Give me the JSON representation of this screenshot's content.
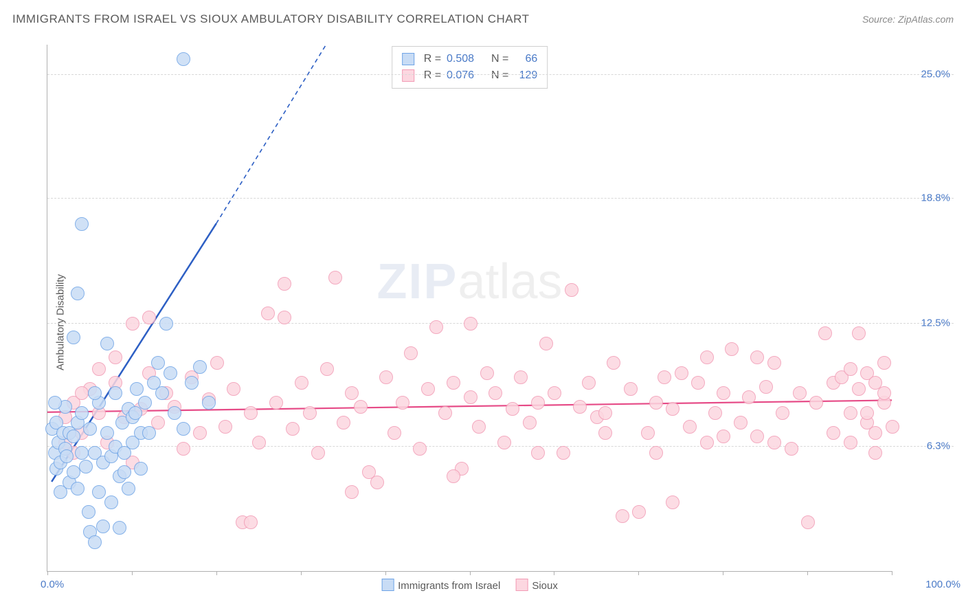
{
  "title": "IMMIGRANTS FROM ISRAEL VS SIOUX AMBULATORY DISABILITY CORRELATION CHART",
  "source_label": "Source: ",
  "source_name": "ZipAtlas.com",
  "ylabel": "Ambulatory Disability",
  "watermark_bold": "ZIP",
  "watermark_rest": "atlas",
  "xaxis": {
    "min_label": "0.0%",
    "max_label": "100.0%",
    "tick_positions_pct": [
      0,
      10,
      20,
      30,
      40,
      50,
      60,
      70,
      80,
      90,
      100
    ]
  },
  "yaxis": {
    "min": 0.0,
    "max": 26.5,
    "gridlines": [
      {
        "value": 6.3,
        "label": "6.3%"
      },
      {
        "value": 12.5,
        "label": "12.5%"
      },
      {
        "value": 18.8,
        "label": "18.8%"
      },
      {
        "value": 25.0,
        "label": "25.0%"
      }
    ]
  },
  "series": [
    {
      "name": "Immigrants from Israel",
      "fill": "#c8dcf5",
      "stroke": "#6fa4e6",
      "line_color": "#2d5fc4",
      "R": "0.508",
      "N": "66",
      "trend": {
        "x1": 0.5,
        "y1": 4.5,
        "solid_end_x": 20,
        "solid_end_y": 17.5,
        "dash_end_x": 33,
        "dash_end_y": 26.5
      },
      "points": [
        [
          0.5,
          7.2
        ],
        [
          0.8,
          6.0
        ],
        [
          1.0,
          7.5
        ],
        [
          1.2,
          6.5
        ],
        [
          1.0,
          5.2
        ],
        [
          1.5,
          5.5
        ],
        [
          1.5,
          4.0
        ],
        [
          1.8,
          7.0
        ],
        [
          2.0,
          6.2
        ],
        [
          2.0,
          8.3
        ],
        [
          0.8,
          8.5
        ],
        [
          2.2,
          5.8
        ],
        [
          2.5,
          7.0
        ],
        [
          2.5,
          4.5
        ],
        [
          3.0,
          6.8
        ],
        [
          3.0,
          5.0
        ],
        [
          3.5,
          7.5
        ],
        [
          3.5,
          4.2
        ],
        [
          4.0,
          6.0
        ],
        [
          4.0,
          8.0
        ],
        [
          4.5,
          5.3
        ],
        [
          4.8,
          3.0
        ],
        [
          5.0,
          7.2
        ],
        [
          5.0,
          2.0
        ],
        [
          5.5,
          6.0
        ],
        [
          5.5,
          1.5
        ],
        [
          6.0,
          8.5
        ],
        [
          6.0,
          4.0
        ],
        [
          6.5,
          5.5
        ],
        [
          6.5,
          2.3
        ],
        [
          7.0,
          7.0
        ],
        [
          7.0,
          11.5
        ],
        [
          7.5,
          5.8
        ],
        [
          7.5,
          3.5
        ],
        [
          8.0,
          9.0
        ],
        [
          8.0,
          6.3
        ],
        [
          8.5,
          4.8
        ],
        [
          8.5,
          2.2
        ],
        [
          8.8,
          7.5
        ],
        [
          9.0,
          6.0
        ],
        [
          9.0,
          5.0
        ],
        [
          9.5,
          8.2
        ],
        [
          9.5,
          4.2
        ],
        [
          10.0,
          7.8
        ],
        [
          10.0,
          6.5
        ],
        [
          10.3,
          8.0
        ],
        [
          10.5,
          9.2
        ],
        [
          11.0,
          7.0
        ],
        [
          11.0,
          5.2
        ],
        [
          11.5,
          8.5
        ],
        [
          12.0,
          7.0
        ],
        [
          12.5,
          9.5
        ],
        [
          13.0,
          10.5
        ],
        [
          3.5,
          14.0
        ],
        [
          4.0,
          17.5
        ],
        [
          3.0,
          11.8
        ],
        [
          13.5,
          9.0
        ],
        [
          14.0,
          12.5
        ],
        [
          14.5,
          10.0
        ],
        [
          15.0,
          8.0
        ],
        [
          16.0,
          7.2
        ],
        [
          16.0,
          25.8
        ],
        [
          17.0,
          9.5
        ],
        [
          18.0,
          10.3
        ],
        [
          19.0,
          8.5
        ],
        [
          5.5,
          9.0
        ]
      ]
    },
    {
      "name": "Sioux",
      "fill": "#fcd7e0",
      "stroke": "#f29bb5",
      "line_color": "#e64b87",
      "R": "0.076",
      "N": "129",
      "trend": {
        "x1": 0,
        "y1": 8.0,
        "solid_end_x": 100,
        "solid_end_y": 8.6
      },
      "points": [
        [
          2,
          7.8
        ],
        [
          3,
          8.5
        ],
        [
          4,
          7.0
        ],
        [
          5,
          9.2
        ],
        [
          6,
          8.0
        ],
        [
          7,
          6.5
        ],
        [
          8,
          9.5
        ],
        [
          9,
          7.8
        ],
        [
          10,
          5.5
        ],
        [
          11,
          8.2
        ],
        [
          12,
          10.0
        ],
        [
          13,
          7.5
        ],
        [
          14,
          9.0
        ],
        [
          15,
          8.3
        ],
        [
          16,
          6.2
        ],
        [
          17,
          9.8
        ],
        [
          18,
          7.0
        ],
        [
          19,
          8.7
        ],
        [
          20,
          10.5
        ],
        [
          21,
          7.3
        ],
        [
          22,
          9.2
        ],
        [
          23,
          2.5
        ],
        [
          24,
          8.0
        ],
        [
          25,
          6.5
        ],
        [
          26,
          13.0
        ],
        [
          27,
          8.5
        ],
        [
          28,
          14.5
        ],
        [
          29,
          7.2
        ],
        [
          30,
          9.5
        ],
        [
          31,
          8.0
        ],
        [
          32,
          6.0
        ],
        [
          33,
          10.2
        ],
        [
          34,
          14.8
        ],
        [
          35,
          7.5
        ],
        [
          36,
          9.0
        ],
        [
          37,
          8.3
        ],
        [
          38,
          5.0
        ],
        [
          39,
          4.5
        ],
        [
          40,
          9.8
        ],
        [
          41,
          7.0
        ],
        [
          42,
          8.5
        ],
        [
          43,
          11.0
        ],
        [
          44,
          6.2
        ],
        [
          45,
          9.2
        ],
        [
          46,
          12.3
        ],
        [
          47,
          8.0
        ],
        [
          48,
          9.5
        ],
        [
          49,
          5.2
        ],
        [
          50,
          8.8
        ],
        [
          51,
          7.3
        ],
        [
          52,
          10.0
        ],
        [
          53,
          9.0
        ],
        [
          54,
          6.5
        ],
        [
          55,
          8.2
        ],
        [
          56,
          9.8
        ],
        [
          57,
          7.5
        ],
        [
          58,
          8.5
        ],
        [
          59,
          11.5
        ],
        [
          60,
          9.0
        ],
        [
          61,
          6.0
        ],
        [
          62,
          14.2
        ],
        [
          63,
          8.3
        ],
        [
          64,
          9.5
        ],
        [
          65,
          7.8
        ],
        [
          66,
          8.0
        ],
        [
          67,
          10.5
        ],
        [
          68,
          2.8
        ],
        [
          69,
          9.2
        ],
        [
          70,
          3.0
        ],
        [
          71,
          7.0
        ],
        [
          72,
          8.5
        ],
        [
          73,
          9.8
        ],
        [
          74,
          8.2
        ],
        [
          75,
          10.0
        ],
        [
          76,
          7.3
        ],
        [
          77,
          9.5
        ],
        [
          78,
          6.5
        ],
        [
          78,
          10.8
        ],
        [
          79,
          8.0
        ],
        [
          80,
          9.0
        ],
        [
          81,
          11.2
        ],
        [
          82,
          7.5
        ],
        [
          83,
          8.8
        ],
        [
          84,
          6.8
        ],
        [
          84,
          10.8
        ],
        [
          85,
          9.3
        ],
        [
          86,
          10.5
        ],
        [
          87,
          8.0
        ],
        [
          88,
          6.2
        ],
        [
          89,
          9.0
        ],
        [
          90,
          2.5
        ],
        [
          91,
          8.5
        ],
        [
          92,
          12.0
        ],
        [
          93,
          7.0
        ],
        [
          93,
          9.5
        ],
        [
          94,
          9.8
        ],
        [
          95,
          6.5
        ],
        [
          95,
          10.2
        ],
        [
          95,
          8.0
        ],
        [
          96,
          9.2
        ],
        [
          96,
          12.0
        ],
        [
          97,
          7.5
        ],
        [
          97,
          8.0
        ],
        [
          97,
          10.0
        ],
        [
          98,
          9.5
        ],
        [
          98,
          6.0
        ],
        [
          98,
          7.0
        ],
        [
          99,
          8.5
        ],
        [
          99,
          10.5
        ],
        [
          99,
          9.0
        ],
        [
          100,
          7.3
        ],
        [
          24,
          2.5
        ],
        [
          12,
          12.8
        ],
        [
          8,
          10.8
        ],
        [
          10,
          12.5
        ],
        [
          6,
          10.2
        ],
        [
          4,
          9.0
        ],
        [
          3,
          6.0
        ],
        [
          2,
          6.5
        ],
        [
          28,
          12.8
        ],
        [
          36,
          4.0
        ],
        [
          48,
          4.8
        ],
        [
          50,
          12.5
        ],
        [
          58,
          6.0
        ],
        [
          72,
          6.0
        ],
        [
          86,
          6.5
        ],
        [
          80,
          6.8
        ],
        [
          74,
          3.5
        ],
        [
          66,
          7.0
        ]
      ]
    }
  ],
  "bottom_legend": [
    {
      "label": "Immigrants from Israel",
      "fill": "#c8dcf5",
      "stroke": "#6fa4e6"
    },
    {
      "label": "Sioux",
      "fill": "#fcd7e0",
      "stroke": "#f29bb5"
    }
  ],
  "legend_box_labels": {
    "R": "R =",
    "N": "N ="
  }
}
